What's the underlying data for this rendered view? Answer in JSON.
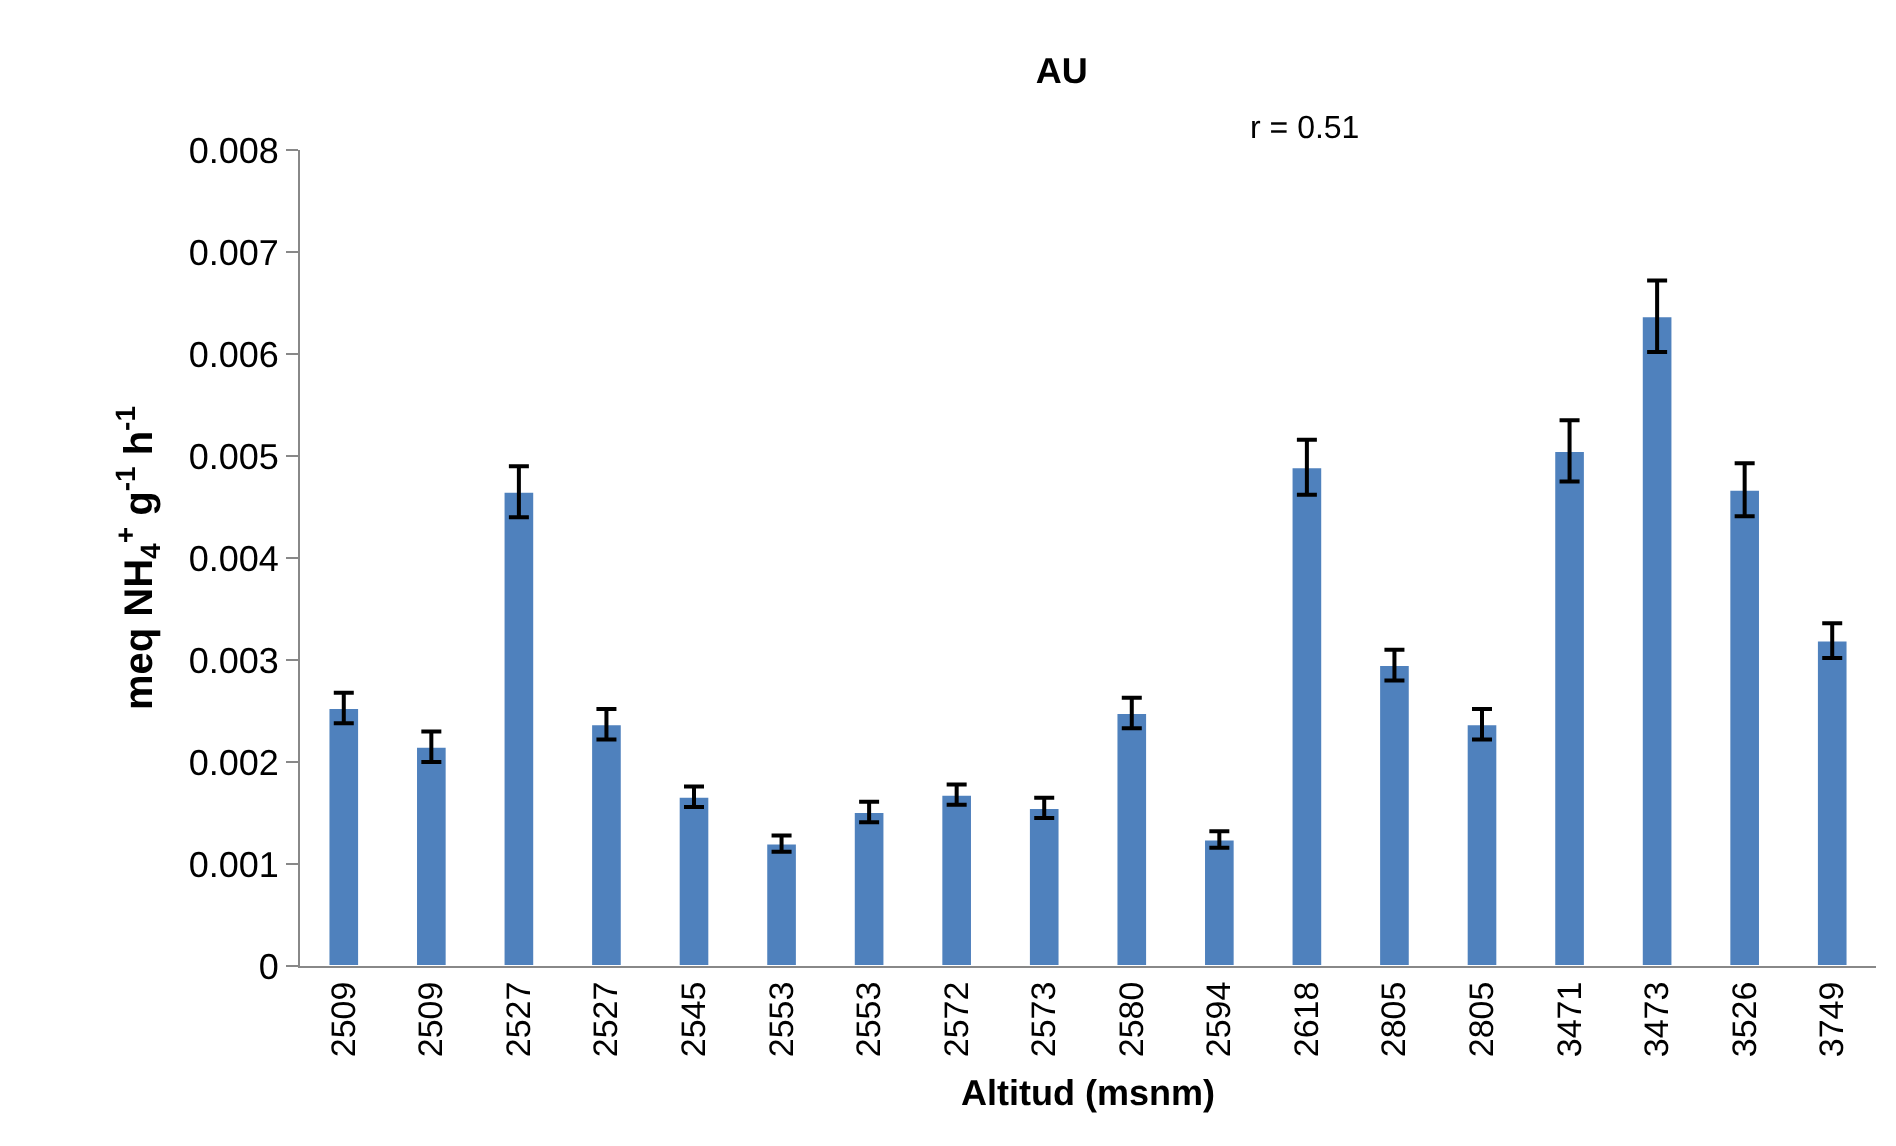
{
  "chart_data": {
    "type": "bar",
    "title": "AU",
    "xlabel": "Altitud (msnm)",
    "ylabel": "meq NH$_{4}$$^{+}$ g$^{-1}$ h$^{-1}$",
    "annotations": [
      "r = 0.51"
    ],
    "categories": [
      "2509",
      "2509",
      "2527",
      "2527",
      "2545",
      "2553",
      "2553",
      "2572",
      "2573",
      "2580",
      "2594",
      "2618",
      "2805",
      "2805",
      "3471",
      "3473",
      "3526",
      "3749"
    ],
    "values": [
      0.00253,
      0.00215,
      0.00465,
      0.00237,
      0.00166,
      0.0012,
      0.00151,
      0.00168,
      0.00155,
      0.00248,
      0.00124,
      0.00489,
      0.00295,
      0.00237,
      0.00505,
      0.00637,
      0.00467,
      0.00319
    ],
    "errors": [
      0.00015,
      0.00015,
      0.00025,
      0.00015,
      0.0001,
      8e-05,
      0.0001,
      0.0001,
      0.0001,
      0.00015,
      8e-05,
      0.00027,
      0.00015,
      0.00015,
      0.0003,
      0.00035,
      0.00026,
      0.00017
    ],
    "color": "#4f81bd",
    "ylim": [
      0,
      0.008
    ],
    "yticks": [
      0,
      0.001,
      0.002,
      0.003,
      0.004,
      0.005,
      0.006,
      0.007,
      0.008
    ]
  }
}
